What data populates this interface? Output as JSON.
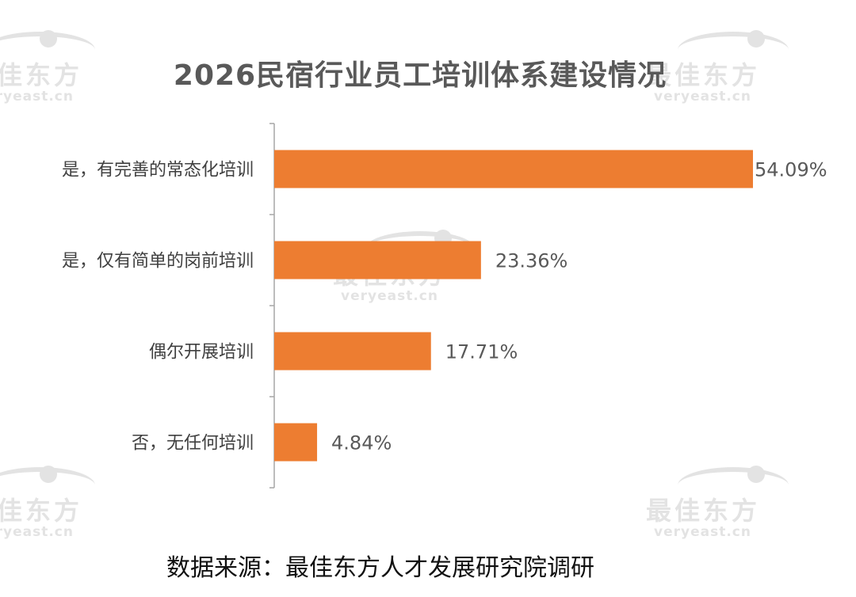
{
  "chart_data": {
    "type": "bar",
    "orientation": "horizontal",
    "title": "2026民宿行业员工培训体系建设情况",
    "categories": [
      "是，有完善的常态化培训",
      "是，仅有简单的岗前培训",
      "偶尔开展培训",
      "否，无任何培训"
    ],
    "values": [
      54.09,
      23.36,
      17.71,
      4.84
    ],
    "value_labels": [
      "54.09%",
      "23.36%",
      "17.71%",
      "4.84%"
    ],
    "unit": "%",
    "bar_color": "#ED7D31",
    "grid": false,
    "legend": "none"
  },
  "source": "数据来源：最佳东方人才发展研究院调研",
  "watermark": {
    "cn": "最佳东方",
    "en": "veryeast.cn"
  }
}
